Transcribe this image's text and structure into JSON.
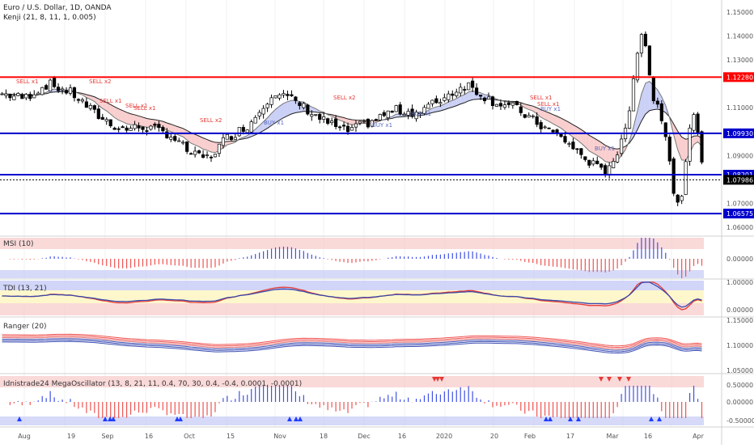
{
  "header": {
    "symbol_line": "Euro / U.S. Dollar, 1D, OANDA",
    "indicator_line": "Kenji (21, 8, 11, 1, 0.005)"
  },
  "price_axis": {
    "ticks": [
      "1.15000",
      "1.14000",
      "1.13000",
      "1.12280",
      "1.11000",
      "1.10000",
      "1.09930",
      "1.09000",
      "1.08201",
      "1.07986",
      "1.07000",
      "1.06575",
      "1.06000"
    ]
  },
  "levels": [
    {
      "label": "1.12280",
      "color": "#ff0000",
      "kind": "resistance"
    },
    {
      "label": "1.09930",
      "color": "#0000cc",
      "kind": "level"
    },
    {
      "label": "1.08201",
      "color": "#0000cc",
      "kind": "level"
    },
    {
      "label": "1.06575",
      "color": "#0000cc",
      "kind": "level"
    }
  ],
  "last_price": {
    "label": "1.07986",
    "color": "#000000"
  },
  "signals": [
    {
      "text": "SELL x1",
      "color": "#e53935"
    },
    {
      "text": "SELL x2",
      "color": "#e53935"
    },
    {
      "text": "SELL x1",
      "color": "#e53935"
    },
    {
      "text": "SELL x1",
      "color": "#e53935"
    },
    {
      "text": "SELL x1",
      "color": "#e53935"
    },
    {
      "text": "SELL x2",
      "color": "#e53935"
    },
    {
      "text": "SELL x2",
      "color": "#e53935"
    },
    {
      "text": "SELL x1",
      "color": "#e53935"
    },
    {
      "text": "SELL x1",
      "color": "#e53935"
    },
    {
      "text": "BUY x1",
      "color": "#5c6bc0"
    },
    {
      "text": "BUY x1",
      "color": "#5c6bc0"
    },
    {
      "text": "BUY x1",
      "color": "#5c6bc0"
    },
    {
      "text": "BUY x1",
      "color": "#5c6bc0"
    },
    {
      "text": "BUY x1",
      "color": "#5c6bc0"
    }
  ],
  "panes": {
    "msi": {
      "title": "MSI (10)",
      "ticks": [
        "0.00000"
      ]
    },
    "tdi": {
      "title": "TDI (13, 21)",
      "ticks": [
        "1.00000",
        "0.00000"
      ]
    },
    "ranger": {
      "title": "Ranger (20)",
      "ticks": [
        "1.15000",
        "1.10000",
        "1.05000"
      ]
    },
    "mega": {
      "title": "Idnistrade24 MegaOscillator (13, 8, 21, 11, 0.4, 70, 30, 0.4, -0.4, 0.0001, -0.0001)",
      "ticks": [
        "0.50000",
        "0.00000",
        "-0.50000"
      ]
    }
  },
  "time_axis": {
    "labels": [
      "Aug",
      "19",
      "Sep",
      "16",
      "Oct",
      "15",
      "Nov",
      "18",
      "Dec",
      "16",
      "2020",
      "20",
      "Feb",
      "17",
      "Mar",
      "16",
      "Apr"
    ]
  },
  "colors": {
    "bull": "#ffffff",
    "bear": "#000000",
    "up_hist": "#3f51e5",
    "down_hist": "#ef5350",
    "band_red": "#f8c9c9",
    "band_blue": "#c5cbf5",
    "tdi_yellow": "#fff7cc"
  }
}
